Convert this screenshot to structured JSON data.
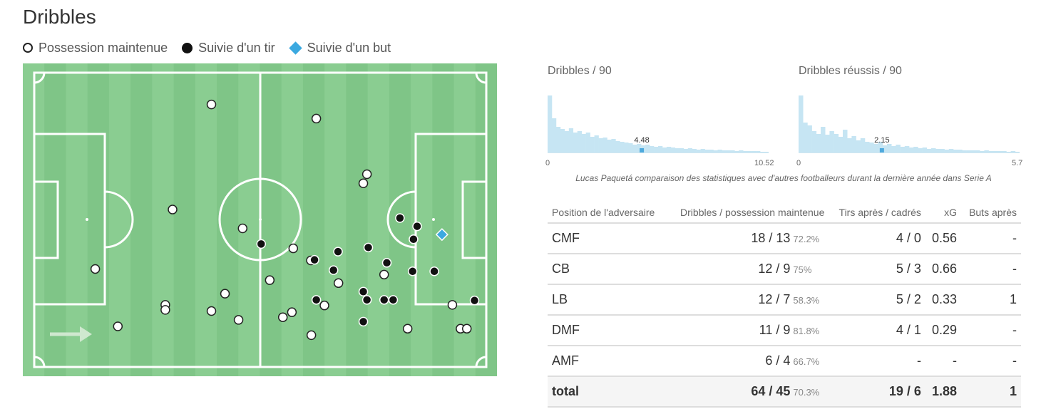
{
  "title": "Dribbles",
  "legend": {
    "possession": "Possession maintenue",
    "shot": "Suivie d'un tir",
    "goal": "Suivie d'un but"
  },
  "colors": {
    "pitch_light": "#8acd91",
    "pitch_dark": "#7fc587",
    "histogram": "#c6e5f3",
    "marker_player": "#4ea9dd",
    "goal_marker": "#3ba9e0"
  },
  "pitch": {
    "dribbles": [
      {
        "x": 39.2,
        "y": 10.8,
        "t": "open"
      },
      {
        "x": 62.4,
        "y": 15.6,
        "t": "open"
      },
      {
        "x": 30.6,
        "y": 46.5,
        "t": "open"
      },
      {
        "x": 13.5,
        "y": 66.7,
        "t": "open"
      },
      {
        "x": 18.5,
        "y": 86.2,
        "t": "open"
      },
      {
        "x": 29.0,
        "y": 78.9,
        "t": "open"
      },
      {
        "x": 29.0,
        "y": 80.6,
        "t": "open"
      },
      {
        "x": 39.2,
        "y": 81.0,
        "t": "open"
      },
      {
        "x": 42.2,
        "y": 75.1,
        "t": "open"
      },
      {
        "x": 45.2,
        "y": 84.0,
        "t": "open"
      },
      {
        "x": 46.1,
        "y": 52.9,
        "t": "open"
      },
      {
        "x": 52.1,
        "y": 70.5,
        "t": "open"
      },
      {
        "x": 55.0,
        "y": 83.1,
        "t": "open"
      },
      {
        "x": 57.0,
        "y": 81.4,
        "t": "open"
      },
      {
        "x": 57.3,
        "y": 59.7,
        "t": "open"
      },
      {
        "x": 61.2,
        "y": 63.8,
        "t": "open"
      },
      {
        "x": 61.3,
        "y": 89.2,
        "t": "open"
      },
      {
        "x": 64.2,
        "y": 79.1,
        "t": "open"
      },
      {
        "x": 67.3,
        "y": 71.5,
        "t": "open"
      },
      {
        "x": 73.6,
        "y": 34.5,
        "t": "open"
      },
      {
        "x": 72.8,
        "y": 37.6,
        "t": "open"
      },
      {
        "x": 77.4,
        "y": 68.6,
        "t": "open"
      },
      {
        "x": 82.6,
        "y": 87.0,
        "t": "open"
      },
      {
        "x": 92.5,
        "y": 78.9,
        "t": "open"
      },
      {
        "x": 94.3,
        "y": 87.0,
        "t": "open"
      },
      {
        "x": 95.7,
        "y": 87.0,
        "t": "open"
      },
      {
        "x": 50.2,
        "y": 58.2,
        "t": "shot"
      },
      {
        "x": 62.0,
        "y": 63.6,
        "t": "shot"
      },
      {
        "x": 67.2,
        "y": 60.8,
        "t": "shot"
      },
      {
        "x": 66.2,
        "y": 67.1,
        "t": "shot"
      },
      {
        "x": 62.4,
        "y": 77.2,
        "t": "shot"
      },
      {
        "x": 73.9,
        "y": 59.4,
        "t": "shot"
      },
      {
        "x": 72.8,
        "y": 74.4,
        "t": "shot"
      },
      {
        "x": 73.6,
        "y": 77.2,
        "t": "shot"
      },
      {
        "x": 72.8,
        "y": 84.6,
        "t": "shot"
      },
      {
        "x": 78.0,
        "y": 64.6,
        "t": "shot"
      },
      {
        "x": 77.4,
        "y": 77.2,
        "t": "shot"
      },
      {
        "x": 79.4,
        "y": 77.2,
        "t": "shot"
      },
      {
        "x": 80.9,
        "y": 49.4,
        "t": "shot"
      },
      {
        "x": 84.7,
        "y": 52.2,
        "t": "shot"
      },
      {
        "x": 83.9,
        "y": 56.6,
        "t": "shot"
      },
      {
        "x": 83.7,
        "y": 67.5,
        "t": "shot"
      },
      {
        "x": 88.5,
        "y": 67.5,
        "t": "shot"
      },
      {
        "x": 97.4,
        "y": 77.4,
        "t": "shot"
      },
      {
        "x": 90.2,
        "y": 55.0,
        "t": "goal"
      }
    ]
  },
  "hist1": {
    "title": "Dribbles / 90",
    "min": "0",
    "max": "10.52",
    "value": "4.48",
    "player_pos": 0.426,
    "bars": [
      80,
      48,
      36,
      33,
      30,
      34,
      28,
      30,
      26,
      28,
      22,
      24,
      20,
      21,
      18,
      19,
      16,
      15,
      14,
      13,
      11,
      12,
      10,
      11,
      9,
      8,
      9,
      7,
      8,
      7,
      6,
      6,
      5,
      6,
      5,
      4,
      5,
      4,
      4,
      3,
      4,
      3,
      3,
      3,
      2,
      3,
      2,
      2,
      2,
      2,
      1,
      1
    ]
  },
  "hist2": {
    "title": "Dribbles réussis / 90",
    "min": "0",
    "max": "5.7",
    "value": "2.15",
    "player_pos": 0.377,
    "bars": [
      80,
      42,
      38,
      30,
      26,
      36,
      25,
      30,
      26,
      22,
      32,
      20,
      23,
      17,
      20,
      15,
      14,
      12,
      15,
      10,
      12,
      9,
      11,
      8,
      9,
      7,
      8,
      6,
      7,
      5,
      6,
      5,
      5,
      4,
      5,
      4,
      4,
      3,
      3,
      3,
      3,
      2,
      3,
      2,
      2,
      2,
      2,
      1,
      2,
      1
    ]
  },
  "caption": "Lucas Paquetá comparaison des statistiques avec d'autres footballeurs durant la dernière année dans Serie A",
  "table": {
    "headers": [
      "Position de l'adversaire",
      "Dribbles / possession maintenue",
      "Tirs après / cadrés",
      "xG",
      "Buts après"
    ],
    "rows": [
      {
        "pos": "CMF",
        "drib": "18 / 13",
        "pct": "72.2%",
        "tirs": "4 / 0",
        "xg": "0.56",
        "buts": "-"
      },
      {
        "pos": "CB",
        "drib": "12 / 9",
        "pct": "75%",
        "tirs": "5 / 3",
        "xg": "0.66",
        "buts": "-"
      },
      {
        "pos": "LB",
        "drib": "12 / 7",
        "pct": "58.3%",
        "tirs": "5 / 2",
        "xg": "0.33",
        "buts": "1"
      },
      {
        "pos": "DMF",
        "drib": "11 / 9",
        "pct": "81.8%",
        "tirs": "4 / 1",
        "xg": "0.29",
        "buts": "-"
      },
      {
        "pos": "AMF",
        "drib": "6 / 4",
        "pct": "66.7%",
        "tirs": "-",
        "xg": "-",
        "buts": "-"
      }
    ],
    "total": {
      "pos": "total",
      "drib": "64 / 45",
      "pct": "70.3%",
      "tirs": "19 / 6",
      "xg": "1.88",
      "buts": "1"
    }
  }
}
